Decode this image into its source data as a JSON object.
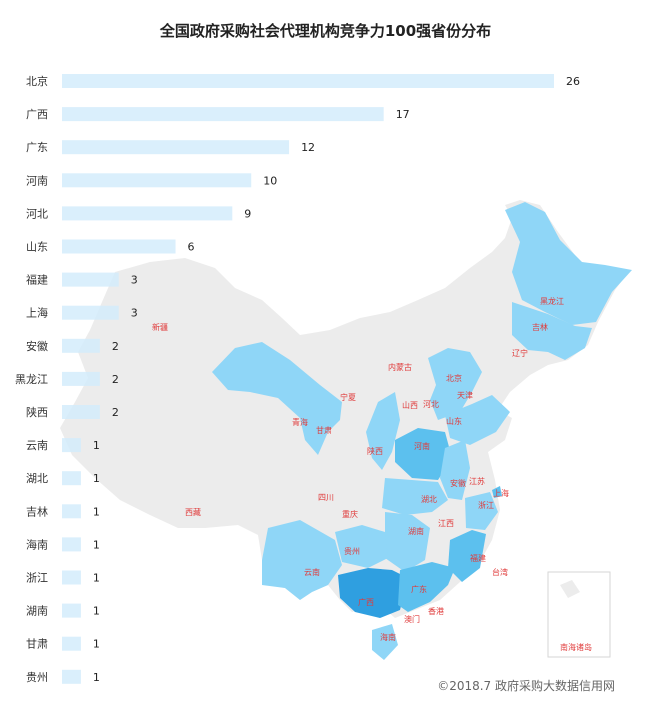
{
  "chart_data": {
    "type": "bar",
    "orientation": "horizontal",
    "title": "全国政府采购社会代理机构竞争力100强省份分布",
    "categories": [
      "北京",
      "广西",
      "广东",
      "河南",
      "河北",
      "山东",
      "福建",
      "上海",
      "安徽",
      "黑龙江",
      "陕西",
      "云南",
      "湖北",
      "吉林",
      "海南",
      "浙江",
      "湖南",
      "甘肃",
      "贵州"
    ],
    "values": [
      26,
      17,
      12,
      10,
      9,
      6,
      3,
      3,
      2,
      2,
      2,
      1,
      1,
      1,
      1,
      1,
      1,
      1,
      1
    ],
    "xlim": [
      0,
      26
    ],
    "grid": false,
    "legend": "none",
    "colors": {
      "bar": "#d3ecfb",
      "bar_on_map": "#b8d7ef"
    }
  },
  "map": {
    "labels": [
      "新疆",
      "西藏",
      "青海",
      "甘肃",
      "宁夏",
      "内蒙古",
      "黑龙江",
      "吉林",
      "辽宁",
      "北京",
      "天津",
      "山西",
      "河北",
      "山东",
      "陕西",
      "河南",
      "四川",
      "重庆",
      "湖北",
      "安徽",
      "江苏",
      "上海",
      "浙江",
      "湖南",
      "江西",
      "贵州",
      "云南",
      "广西",
      "广东",
      "福建",
      "台湾",
      "香港",
      "澳门",
      "海南",
      "南海诸岛"
    ],
    "colors": {
      "none": "#ececec",
      "light": "#8fd6f7",
      "medium": "#5cc0ee",
      "dark": "#2f9fe0",
      "darkest": "#1e5fa8",
      "label": "#e03b3b"
    }
  },
  "credit": "©2018.7 政府采购大数据信用网"
}
